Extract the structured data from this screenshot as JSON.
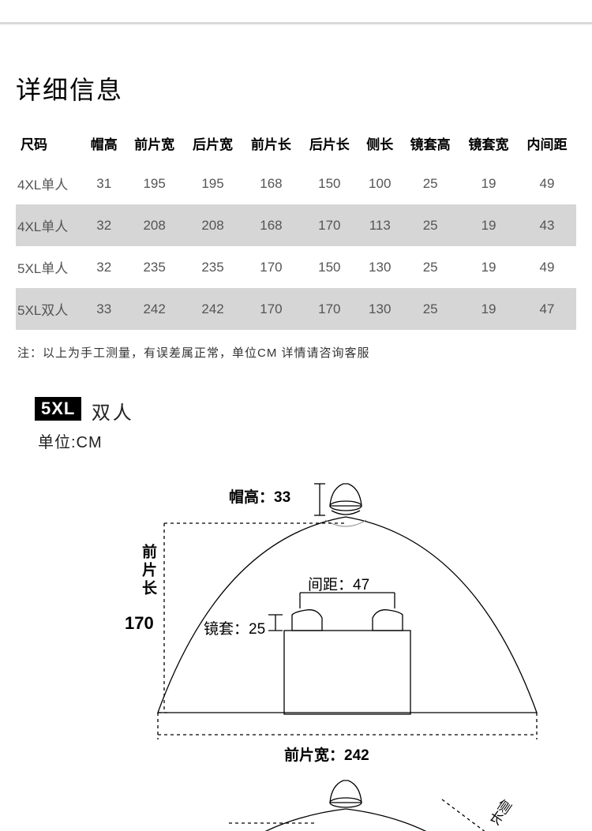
{
  "title": "详细信息",
  "table": {
    "columns": [
      "尺码",
      "帽高",
      "前片宽",
      "后片宽",
      "前片长",
      "后片长",
      "侧长",
      "镜套高",
      "镜套宽",
      "内间距"
    ],
    "rows": [
      [
        "4XL单人",
        "31",
        "195",
        "195",
        "168",
        "150",
        "100",
        "25",
        "19",
        "49"
      ],
      [
        "4XL单人",
        "32",
        "208",
        "208",
        "168",
        "170",
        "113",
        "25",
        "19",
        "43"
      ],
      [
        "5XL单人",
        "32",
        "235",
        "235",
        "170",
        "150",
        "130",
        "25",
        "19",
        "49"
      ],
      [
        "5XL双人",
        "33",
        "242",
        "242",
        "170",
        "170",
        "130",
        "25",
        "19",
        "47"
      ]
    ],
    "header_bg": "#ffffff",
    "row_colors": [
      "#ffffff",
      "#d6d6d6",
      "#ffffff",
      "#d6d6d6"
    ]
  },
  "note": "注：以上为手工测量，有误差属正常，单位CM  详情请咨询客服",
  "diagram": {
    "badge": "5XL",
    "badge_sub": "双人",
    "unit": "单位:CM",
    "cap_label": "帽高：",
    "cap_value": "33",
    "front_len_label": "前片长",
    "front_len_value": "170",
    "gap_label": "间距：",
    "gap_value": "47",
    "mirror_label": "镜套：",
    "mirror_value": "25",
    "front_w_label": "前片宽：",
    "front_w_value": "242",
    "colors": {
      "stroke": "#000000",
      "light": "#888888",
      "fill": "#ffffff"
    }
  },
  "second": {
    "side_label": "侧长"
  }
}
